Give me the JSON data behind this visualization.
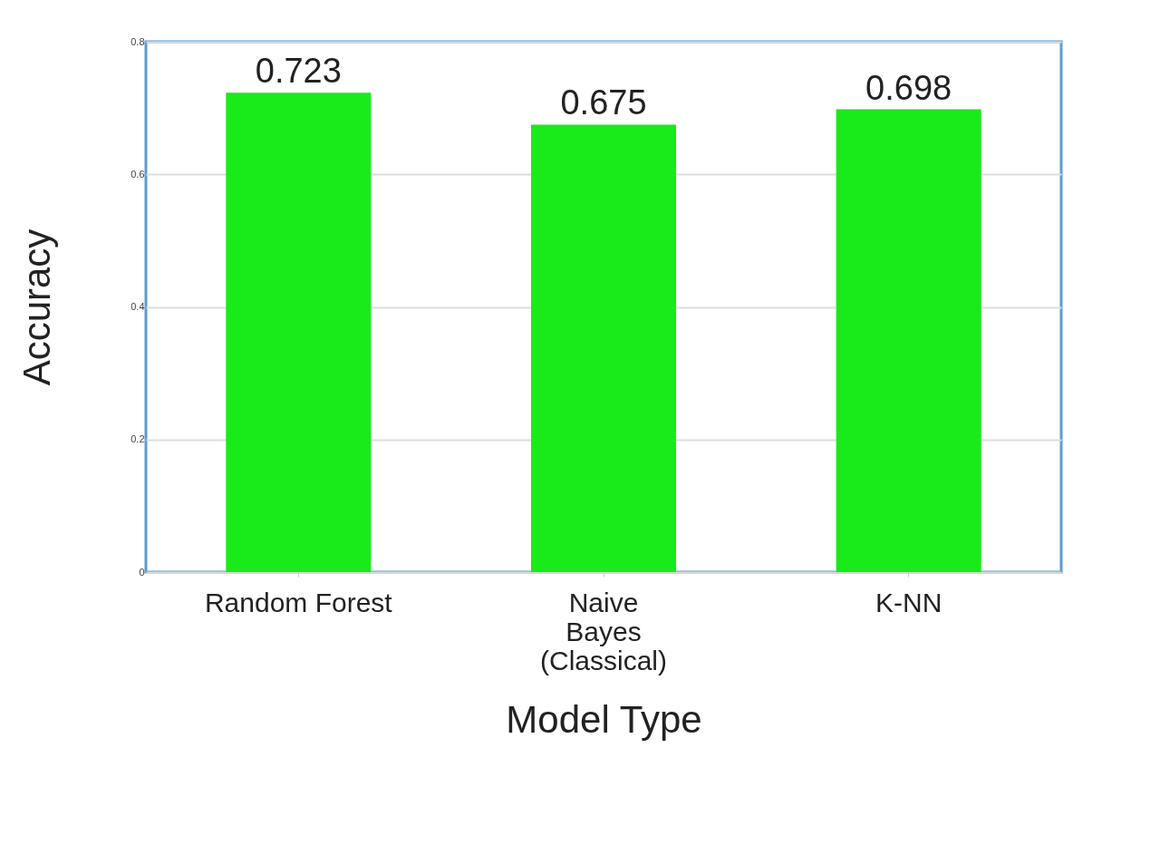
{
  "chart_data": {
    "type": "bar",
    "xlabel": "Model Type",
    "ylabel": "Accuracy",
    "categories": [
      "Random Forest",
      "Naive Bayes (Classical)",
      "K-NN"
    ],
    "values": [
      0.723,
      0.675,
      0.698
    ],
    "color": "#19ea19",
    "ylim": [
      0,
      0.8
    ],
    "yticks": [
      0,
      0.2,
      0.4,
      0.6,
      0.8
    ],
    "grid": "y",
    "data_labels": true
  }
}
